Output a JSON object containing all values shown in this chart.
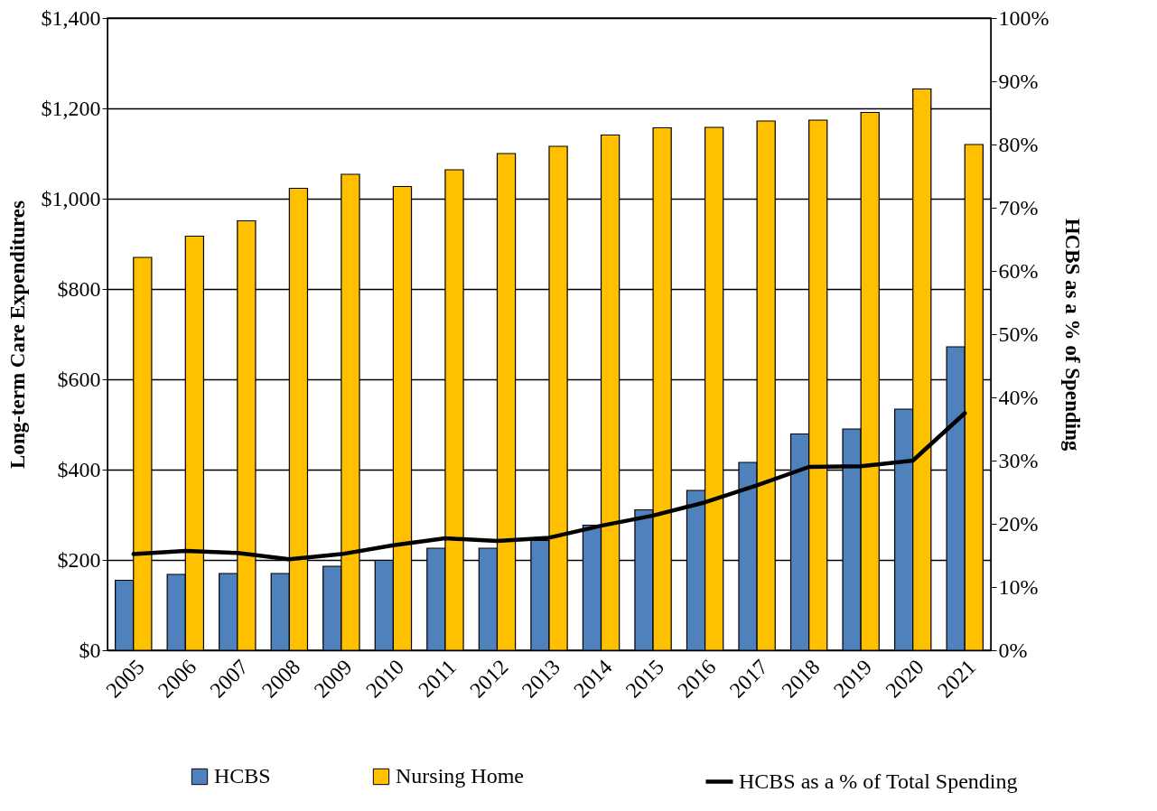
{
  "chart_data": {
    "type": "bar",
    "ylabel": "Long-term Care Expenditures",
    "y2label": "HCBS as a % of Spending",
    "categories": [
      "2005",
      "2006",
      "2007",
      "2008",
      "2009",
      "2010",
      "2011",
      "2012",
      "2013",
      "2014",
      "2015",
      "2016",
      "2017",
      "2018",
      "2019",
      "2020",
      "2021"
    ],
    "series": [
      {
        "name": "HCBS",
        "type": "bar",
        "color": "#4f81bd",
        "values": [
          155,
          168,
          170,
          170,
          186,
          199,
          226,
          226,
          243,
          277,
          311,
          354,
          416,
          479,
          490,
          534,
          672
        ]
      },
      {
        "name": "Nursing Home",
        "type": "bar",
        "color": "#ffc000",
        "values": [
          870,
          917,
          951,
          1023,
          1054,
          1027,
          1064,
          1100,
          1116,
          1141,
          1157,
          1158,
          1172,
          1174,
          1191,
          1243,
          1120
        ]
      },
      {
        "name": "HCBS as a % of Total Spending",
        "type": "line",
        "axis": "y2",
        "color": "#000000",
        "values": [
          15.2,
          15.7,
          15.4,
          14.4,
          15.2,
          16.6,
          17.7,
          17.3,
          17.8,
          19.7,
          21.3,
          23.4,
          26.1,
          29.0,
          29.1,
          30.0,
          37.5
        ]
      }
    ],
    "ylim": [
      0,
      1400
    ],
    "yticks": [
      {
        "value": 0,
        "label": "$0"
      },
      {
        "value": 200,
        "label": "$200"
      },
      {
        "value": 400,
        "label": "$400"
      },
      {
        "value": 600,
        "label": "$600"
      },
      {
        "value": 800,
        "label": "$800"
      },
      {
        "value": 1000,
        "label": "$1,000"
      },
      {
        "value": 1200,
        "label": "$1,200"
      },
      {
        "value": 1400,
        "label": "$1,400"
      }
    ],
    "y2lim": [
      0,
      100
    ],
    "y2ticks": [
      {
        "value": 0,
        "label": "0%"
      },
      {
        "value": 10,
        "label": "10%"
      },
      {
        "value": 20,
        "label": "20%"
      },
      {
        "value": 30,
        "label": "30%"
      },
      {
        "value": 40,
        "label": "40%"
      },
      {
        "value": 50,
        "label": "50%"
      },
      {
        "value": 60,
        "label": "60%"
      },
      {
        "value": 70,
        "label": "70%"
      },
      {
        "value": 80,
        "label": "80%"
      },
      {
        "value": 90,
        "label": "90%"
      },
      {
        "value": 100,
        "label": "100%"
      }
    ],
    "grid": "y",
    "legend": "bottom",
    "marker": "none",
    "line_style": "solid"
  }
}
